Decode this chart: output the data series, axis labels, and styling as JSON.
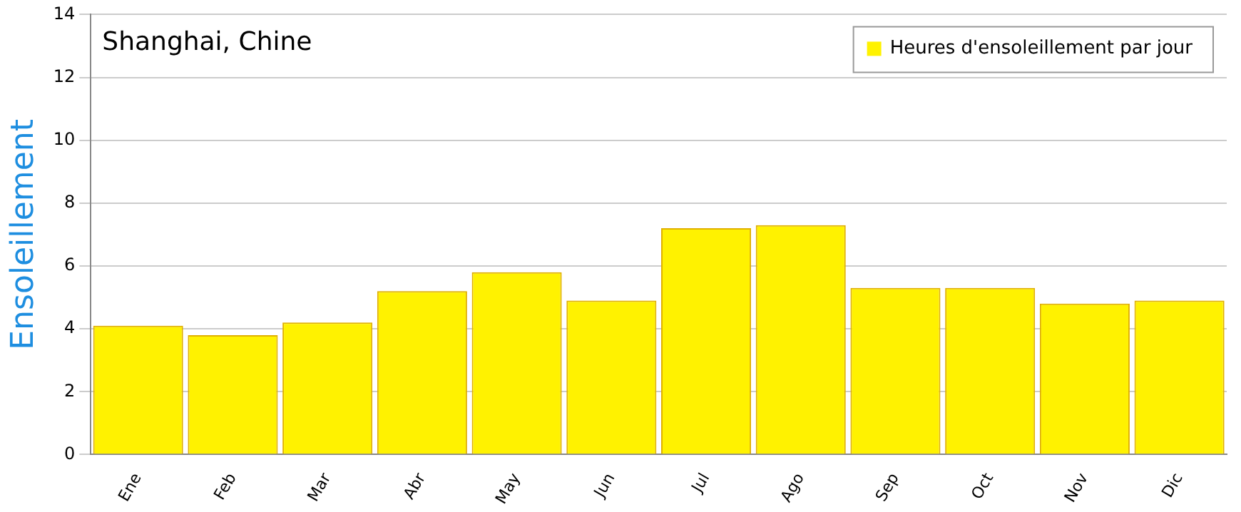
{
  "chart_data": {
    "type": "bar",
    "title": "Shanghai, Chine",
    "ylabel": "Ensoleillement",
    "categories": [
      "Ene",
      "Feb",
      "Mar",
      "Abr",
      "May",
      "Jun",
      "Jul",
      "Ago",
      "Sep",
      "Oct",
      "Nov",
      "Dic"
    ],
    "series": [
      {
        "name": "Heures d'ensoleillement par jour",
        "color": "#fff200",
        "values": [
          4.1,
          3.8,
          4.2,
          5.2,
          5.8,
          4.9,
          7.2,
          7.3,
          5.3,
          5.3,
          4.8,
          4.9
        ]
      }
    ],
    "ylim": [
      0,
      14
    ],
    "yticks": [
      0,
      2,
      4,
      6,
      8,
      10,
      12,
      14
    ],
    "grid": "y",
    "legend": "top right"
  }
}
